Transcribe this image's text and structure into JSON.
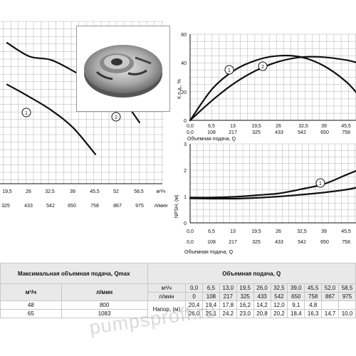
{
  "charts": {
    "head": {
      "x_ticks_q": [
        "19,5",
        "26",
        "32,5",
        "39",
        "45,5",
        "52",
        "58,5"
      ],
      "x_unit_q": "м³/ч",
      "x_ticks_l": [
        "325",
        "433",
        "542",
        "650",
        "758",
        "867",
        "975"
      ],
      "x_unit_l": "л/мин",
      "markers": [
        "1",
        "2"
      ]
    },
    "eff": {
      "ylabel": "К.п.д., %",
      "y_ticks": [
        "0",
        "20",
        "40",
        "60"
      ],
      "x_ticks_q": [
        "0,0",
        "6,5",
        "13",
        "19,5",
        "26",
        "32,5",
        "39",
        "45,5"
      ],
      "x_ticks_l": [
        "0,0",
        "108",
        "217",
        "325",
        "433",
        "542",
        "650",
        "758"
      ],
      "xlabel": "Объемная подача, Q",
      "markers": [
        "1",
        "2"
      ]
    },
    "npsh": {
      "ylabel": "NPSH, (м)",
      "y_ticks": [
        "0",
        "1",
        "2",
        "3"
      ],
      "x_ticks_q": [
        "0,0",
        "6,5",
        "13",
        "19,5",
        "26",
        "32,5",
        "39",
        "45,5"
      ],
      "x_ticks_l": [
        "0,0",
        "108",
        "217",
        "325",
        "433",
        "542",
        "650",
        "758"
      ],
      "xlabel": "Объемная подача, Q",
      "markers": [
        "1"
      ]
    }
  },
  "chart_data": [
    {
      "type": "line",
      "x_unit": "м³/ч",
      "ylim": [
        0,
        60
      ],
      "series": [
        {
          "x": [
            0,
            6.5,
            13,
            19.5,
            26,
            32.5,
            39,
            45.5
          ],
          "values": [
            20.4,
            19.4,
            17.8,
            16.2,
            14.2,
            12.0,
            9.1,
            4.8
          ]
        },
        {
          "x": [
            0,
            6.5,
            13,
            19.5,
            26,
            32.5,
            39,
            45.5,
            52,
            58.5
          ],
          "values": [
            26.0,
            25.1,
            24.2,
            23.0,
            20.8,
            20.2,
            18.4,
            16.3,
            14.7,
            10.0
          ]
        }
      ]
    },
    {
      "type": "line",
      "ylabel": "К.п.д., %",
      "xlabel": "Объемная подача, Q",
      "xlim": [
        0,
        50
      ],
      "ylim": [
        0,
        60
      ],
      "series": [
        {
          "x": [
            0,
            6.5,
            13,
            19.5,
            26,
            32.5,
            39,
            45.5,
            49
          ],
          "values": [
            0,
            22,
            35,
            42,
            45,
            44,
            38,
            27,
            18
          ]
        },
        {
          "x": [
            0,
            6.5,
            13,
            19.5,
            26,
            32.5,
            39,
            45.5,
            49
          ],
          "values": [
            0,
            14,
            26,
            35,
            41,
            44,
            44,
            42,
            40
          ]
        }
      ]
    },
    {
      "type": "line",
      "ylabel": "NPSH, (м)",
      "xlabel": "Объемная подача, Q",
      "xlim": [
        0,
        50
      ],
      "ylim": [
        0,
        3
      ],
      "series": [
        {
          "x": [
            0,
            6.5,
            13,
            19.5,
            26,
            32.5,
            39,
            45.5,
            49
          ],
          "values": [
            0.96,
            0.96,
            0.99,
            1.05,
            1.12,
            1.28,
            1.47,
            1.82,
            2.0
          ]
        },
        {
          "x": [
            0,
            6.5,
            13,
            19.5,
            26,
            32.5,
            39,
            45.5,
            49
          ],
          "values": [
            0.93,
            0.92,
            0.92,
            0.95,
            1.0,
            1.07,
            1.15,
            1.26,
            1.35
          ]
        }
      ]
    }
  ],
  "table": {
    "left_header": "Максимальная объемная подача, Qmax",
    "unit_q": "м³/ч",
    "unit_l": "л/мин",
    "right_header": "Объемная подача, Q",
    "row_unit_q": "м³/ч",
    "row_unit_l": "л/мин",
    "q_values": [
      "0,0",
      "6,5",
      "13,0",
      "19,5",
      "26,0",
      "32,5",
      "39,0",
      "45,5",
      "52,0",
      "58,5"
    ],
    "l_values": [
      "0",
      "108",
      "217",
      "325",
      "433",
      "542",
      "650",
      "758",
      "867",
      "975"
    ],
    "head_label": "Напор, (м)",
    "rows": [
      {
        "qmax": "48",
        "lmax": "800",
        "values": [
          "20,4",
          "19,4",
          "17,8",
          "16,2",
          "14,2",
          "12,0",
          "9,1",
          "4,8",
          "",
          ""
        ]
      },
      {
        "qmax": "65",
        "lmax": "1083",
        "values": [
          "26,0",
          "25,1",
          "24,2",
          "23,0",
          "20,8",
          "20,2",
          "18,4",
          "16,3",
          "14,7",
          "10,0"
        ]
      }
    ]
  },
  "watermark": "pumpsproff.ru",
  "colors": {
    "curve": "#111111",
    "grid": "#b0b0b0",
    "header_bg": "#e9e9e9"
  }
}
